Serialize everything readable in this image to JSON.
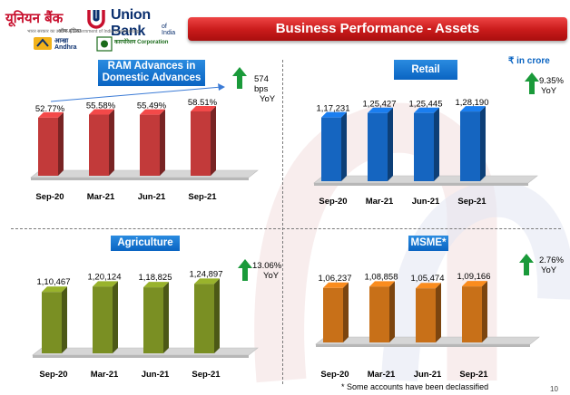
{
  "header": {
    "logo_hindi": "यूनियन बैंक",
    "logo_hindi_sub": "ऑफ इंडिया",
    "logo_english": "Union Bank",
    "logo_english_sub": "of India",
    "tagline": "भारत सरकार का उपक्रम  A Government of India Undertaking",
    "andhra_logo_text": "आन्ध्रा Andhra",
    "corporation_logo_text": "कारपोरेशन Corporation",
    "title": "Business Performance - Assets"
  },
  "chart_data": [
    {
      "type": "bar",
      "title": "RAM Advances in Domestic Advances",
      "categories": [
        "Sep-20",
        "Mar-21",
        "Jun-21",
        "Sep-21"
      ],
      "values": [
        52.77,
        55.58,
        55.49,
        58.51
      ],
      "value_labels": [
        "52.77%",
        "55.58%",
        "55.49%",
        "58.51%"
      ],
      "yoy": "574 bps YoY",
      "yoy_lines": [
        "574 bps",
        "YoY"
      ],
      "color": "#c23a3a",
      "ylim": [
        0,
        70
      ]
    },
    {
      "type": "bar",
      "title": "Retail",
      "unit": "₹ in crore",
      "categories": [
        "Sep-20",
        "Mar-21",
        "Jun-21",
        "Sep-21"
      ],
      "values": [
        117231,
        125427,
        125445,
        128190
      ],
      "value_labels": [
        "1,17,231",
        "1,25,427",
        "1,25,445",
        "1,28,190"
      ],
      "yoy": "9.35% YoY",
      "yoy_lines": [
        "9.35%",
        "YoY"
      ],
      "color": "#1565c0",
      "ylim": [
        0,
        150000
      ]
    },
    {
      "type": "bar",
      "title": "Agriculture",
      "categories": [
        "Sep-20",
        "Mar-21",
        "Jun-21",
        "Sep-21"
      ],
      "values": [
        110467,
        120124,
        118825,
        124897
      ],
      "value_labels": [
        "1,10,467",
        "1,20,124",
        "1,18,825",
        "1,24,897"
      ],
      "yoy": "13.06% YoY",
      "yoy_lines": [
        "13.06%",
        "YoY"
      ],
      "color": "#7a8f23",
      "ylim": [
        0,
        150000
      ]
    },
    {
      "type": "bar",
      "title": "MSME*",
      "categories": [
        "Sep-20",
        "Mar-21",
        "Jun-21",
        "Sep-21"
      ],
      "values": [
        106237,
        108858,
        105474,
        109166
      ],
      "value_labels": [
        "1,06,237",
        "1,08,858",
        "1,05,474",
        "1,09,166"
      ],
      "yoy": "2.76% YoY",
      "yoy_lines": [
        "2.76%",
        "YoY"
      ],
      "color": "#c87018",
      "ylim": [
        0,
        150000
      ]
    }
  ],
  "footnote": "* Some accounts have been declassified",
  "page_number": "10",
  "colors": {
    "title_bar": "#c81a1a",
    "panel_title": "#0a64c2",
    "arrow": "#1a9a3a"
  }
}
